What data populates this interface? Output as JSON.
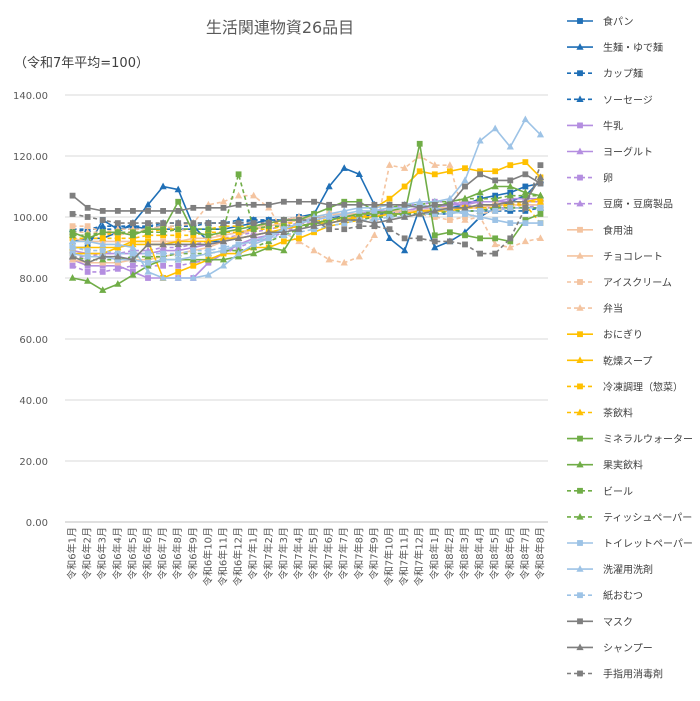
{
  "chart_data": {
    "type": "line",
    "title": "生活関連物資26品目",
    "note": "（令和7年平均=100）",
    "ylim": [
      0,
      140
    ],
    "yticks": [
      "0.00",
      "20.00",
      "40.00",
      "60.00",
      "80.00",
      "100.00",
      "120.00",
      "140.00"
    ],
    "grid": true,
    "legend_position": "right",
    "categories": [
      "令和6年1月",
      "令和6年2月",
      "令和6年3月",
      "令和6年4月",
      "令和6年5月",
      "令和6年6月",
      "令和6年7月",
      "令和6年8月",
      "令和6年9月",
      "令和6年10月",
      "令和6年11月",
      "令和6年12月",
      "令和7年1月",
      "令和7年2月",
      "令和7年3月",
      "令和7年4月",
      "令和7年5月",
      "令和7年6月",
      "令和7年7月",
      "令和7年8月",
      "令和7年9月",
      "令和7年10月",
      "令和7年11月",
      "令和7年12月",
      "令和8年1月",
      "令和8年2月",
      "令和8年3月",
      "令和8年4月",
      "令和8年5月",
      "令和8年6月",
      "令和8年7月",
      "令和8年8月"
    ],
    "series": [
      {
        "name": "食パン",
        "color": "#1f6fb6",
        "dash": "solid",
        "marker": "square",
        "values": [
          90,
          90,
          99,
          96,
          97,
          96,
          96,
          96,
          96,
          96,
          96,
          97,
          98,
          99,
          99,
          99,
          100,
          100,
          100,
          100,
          101,
          101,
          102,
          102,
          102,
          103,
          104,
          106,
          107,
          108,
          110,
          111
        ]
      },
      {
        "name": "生麺・ゆで麺",
        "color": "#1f6fb6",
        "dash": "solid",
        "marker": "triangle",
        "values": [
          92,
          93,
          93,
          95,
          98,
          104,
          110,
          109,
          97,
          92,
          92,
          94,
          97,
          98,
          99,
          100,
          101,
          110,
          116,
          114,
          104,
          93,
          89,
          103,
          90,
          92,
          95,
          100,
          103,
          105,
          107,
          112
        ]
      },
      {
        "name": "カップ麺",
        "color": "#1f6fb6",
        "dash": "dash",
        "marker": "square",
        "values": [
          95,
          96,
          96,
          96,
          96,
          97,
          97,
          97,
          97,
          98,
          98,
          98,
          99,
          99,
          99,
          100,
          100,
          100,
          100,
          100,
          100,
          100,
          101,
          101,
          101,
          101,
          102,
          102,
          102,
          102,
          102,
          103
        ]
      },
      {
        "name": "ソーセージ",
        "color": "#1f6fb6",
        "dash": "dash",
        "marker": "triangle",
        "values": [
          96,
          96,
          97,
          97,
          97,
          97,
          98,
          98,
          98,
          98,
          98,
          99,
          99,
          99,
          99,
          100,
          100,
          100,
          100,
          100,
          101,
          101,
          101,
          101,
          101,
          102,
          102,
          102,
          103,
          103,
          103,
          103
        ]
      },
      {
        "name": "牛乳",
        "color": "#b48ee0",
        "dash": "solid",
        "marker": "square",
        "values": [
          86,
          84,
          84,
          84,
          82,
          80,
          80,
          80,
          80,
          85,
          88,
          91,
          93,
          94,
          96,
          98,
          99,
          100,
          101,
          101,
          102,
          102,
          102,
          103,
          103,
          104,
          105,
          105,
          105,
          105,
          105,
          105
        ]
      },
      {
        "name": "ヨーグルト",
        "color": "#b48ee0",
        "dash": "solid",
        "marker": "triangle",
        "values": [
          89,
          88,
          88,
          88,
          88,
          88,
          89,
          89,
          90,
          91,
          92,
          93,
          94,
          95,
          96,
          97,
          98,
          99,
          100,
          101,
          101,
          102,
          102,
          103,
          103,
          104,
          104,
          105,
          105,
          106,
          106,
          106
        ]
      },
      {
        "name": "卵",
        "color": "#b48ee0",
        "dash": "dash",
        "marker": "square",
        "values": [
          84,
          82,
          82,
          83,
          84,
          84,
          84,
          84,
          85,
          86,
          88,
          90,
          92,
          93,
          95,
          97,
          98,
          99,
          100,
          101,
          102,
          103,
          104,
          104,
          105,
          105,
          104,
          103,
          103,
          103,
          103,
          104
        ]
      },
      {
        "name": "豆腐・豆腐製品",
        "color": "#b48ee0",
        "dash": "dash",
        "marker": "triangle",
        "values": [
          87,
          87,
          88,
          88,
          89,
          89,
          90,
          90,
          91,
          92,
          93,
          94,
          95,
          96,
          97,
          98,
          98,
          99,
          100,
          100,
          101,
          101,
          102,
          102,
          102,
          103,
          103,
          103,
          104,
          104,
          104,
          104
        ]
      },
      {
        "name": "食用油",
        "color": "#f4c4a0",
        "dash": "solid",
        "marker": "square",
        "values": [
          93,
          92,
          92,
          92,
          92,
          92,
          92,
          92,
          93,
          93,
          94,
          95,
          96,
          97,
          98,
          99,
          100,
          100,
          101,
          101,
          101,
          102,
          102,
          102,
          103,
          103,
          103,
          103,
          104,
          104,
          104,
          104
        ]
      },
      {
        "name": "チョコレート",
        "color": "#f4c4a0",
        "dash": "solid",
        "marker": "triangle",
        "values": [
          86,
          85,
          85,
          85,
          86,
          86,
          87,
          88,
          89,
          90,
          92,
          94,
          96,
          98,
          99,
          100,
          100,
          101,
          101,
          101,
          101,
          102,
          102,
          102,
          103,
          103,
          103,
          103,
          104,
          104,
          104,
          104
        ]
      },
      {
        "name": "アイスクリーム",
        "color": "#f4c4a0",
        "dash": "dash",
        "marker": "square",
        "values": [
          97,
          97,
          95,
          94,
          95,
          96,
          97,
          96,
          95,
          94,
          94,
          95,
          96,
          97,
          98,
          99,
          100,
          101,
          100,
          99,
          100,
          101,
          102,
          101,
          100,
          99,
          100,
          101,
          102,
          103,
          104,
          104
        ]
      },
      {
        "name": "弁当",
        "color": "#f4c4a0",
        "dash": "dash",
        "marker": "triangle",
        "values": [
          95,
          95,
          95,
          96,
          96,
          96,
          97,
          97,
          98,
          104,
          105,
          107,
          107,
          103,
          95,
          92,
          89,
          86,
          85,
          87,
          94,
          117,
          116,
          120,
          117,
          117,
          99,
          100,
          91,
          90,
          92,
          93
        ]
      },
      {
        "name": "おにぎり",
        "color": "#ffc000",
        "dash": "solid",
        "marker": "square",
        "values": [
          88,
          88,
          88,
          90,
          92,
          92,
          80,
          82,
          84,
          86,
          88,
          88,
          90,
          90,
          92,
          93,
          95,
          97,
          98,
          99,
          103,
          106,
          110,
          115,
          114,
          115,
          116,
          115,
          115,
          117,
          118,
          113
        ]
      },
      {
        "name": "乾燥スープ",
        "color": "#ffc000",
        "dash": "solid",
        "marker": "triangle",
        "values": [
          90,
          90,
          90,
          90,
          91,
          91,
          91,
          92,
          92,
          92,
          93,
          93,
          94,
          95,
          96,
          97,
          98,
          98,
          99,
          100,
          100,
          101,
          101,
          102,
          102,
          102,
          103,
          104,
          104,
          105,
          105,
          106
        ]
      },
      {
        "name": "冷凍調理（惣菜）",
        "color": "#ffc000",
        "dash": "dash",
        "marker": "square",
        "values": [
          93,
          93,
          93,
          93,
          93,
          94,
          94,
          94,
          94,
          95,
          95,
          95,
          96,
          96,
          97,
          97,
          98,
          99,
          99,
          100,
          100,
          101,
          101,
          102,
          102,
          102,
          103,
          103,
          103,
          104,
          104,
          98
        ]
      },
      {
        "name": "茶飲料",
        "color": "#ffc000",
        "dash": "dash",
        "marker": "triangle",
        "values": [
          94,
          94,
          94,
          95,
          95,
          95,
          96,
          96,
          96,
          96,
          97,
          97,
          97,
          98,
          98,
          98,
          99,
          99,
          100,
          100,
          100,
          101,
          101,
          102,
          102,
          103,
          103,
          104,
          104,
          104,
          105,
          105
        ]
      },
      {
        "name": "ミネラルウォーター",
        "color": "#70ad47",
        "dash": "solid",
        "marker": "square",
        "values": [
          95,
          93,
          95,
          95,
          94,
          96,
          96,
          105,
          95,
          94,
          95,
          96,
          97,
          98,
          99,
          99,
          101,
          103,
          105,
          105,
          102,
          101,
          101,
          124,
          94,
          95,
          94,
          93,
          93,
          92,
          99,
          101
        ]
      },
      {
        "name": "果実飲料",
        "color": "#70ad47",
        "dash": "solid",
        "marker": "triangle",
        "values": [
          80,
          79,
          76,
          78,
          81,
          84,
          86,
          86,
          86,
          86,
          86,
          87,
          88,
          90,
          89,
          97,
          98,
          99,
          100,
          101,
          101,
          102,
          103,
          104,
          103,
          105,
          106,
          108,
          110,
          110,
          108,
          107
        ]
      },
      {
        "name": "ビール",
        "color": "#70ad47",
        "dash": "dash",
        "marker": "square",
        "values": [
          94,
          94,
          95,
          95,
          95,
          95,
          95,
          96,
          96,
          96,
          96,
          114,
          96,
          97,
          97,
          97,
          98,
          98,
          99,
          99,
          100,
          100,
          101,
          101,
          101,
          102,
          102,
          102,
          103,
          103,
          103,
          103
        ]
      },
      {
        "name": "ティッシュペーパー",
        "color": "#70ad47",
        "dash": "dash",
        "marker": "triangle",
        "values": [
          87,
          86,
          86,
          86,
          87,
          87,
          87,
          88,
          88,
          88,
          89,
          89,
          90,
          92,
          94,
          96,
          98,
          99,
          100,
          101,
          102,
          103,
          104,
          104,
          105,
          105,
          106,
          106,
          106,
          107,
          107,
          107
        ]
      },
      {
        "name": "トイレットペーパー",
        "color": "#9dc3e6",
        "dash": "solid",
        "marker": "square",
        "values": [
          88,
          87,
          87,
          86,
          86,
          85,
          86,
          86,
          87,
          88,
          89,
          91,
          92,
          94,
          96,
          98,
          99,
          100,
          101,
          102,
          102,
          103,
          103,
          104,
          103,
          102,
          101,
          100,
          99,
          98,
          98,
          98
        ]
      },
      {
        "name": "洗濯用洗剤",
        "color": "#9dc3e6",
        "dash": "solid",
        "marker": "triangle",
        "values": [
          92,
          92,
          91,
          91,
          90,
          82,
          80,
          80,
          80,
          81,
          84,
          88,
          91,
          93,
          96,
          98,
          100,
          101,
          102,
          103,
          103,
          104,
          104,
          105,
          105,
          106,
          112,
          125,
          129,
          123,
          132,
          127
        ]
      },
      {
        "name": "紙おむつ",
        "color": "#9dc3e6",
        "dash": "dash",
        "marker": "square",
        "values": [
          90,
          89,
          89,
          88,
          88,
          88,
          88,
          88,
          89,
          89,
          90,
          91,
          92,
          93,
          94,
          95,
          96,
          97,
          98,
          99,
          99,
          100,
          100,
          101,
          101,
          101,
          102,
          102,
          102,
          103,
          103,
          103
        ]
      },
      {
        "name": "マスク",
        "color": "#7f7f7f",
        "dash": "solid",
        "marker": "square",
        "values": [
          107,
          103,
          102,
          102,
          102,
          102,
          102,
          102,
          103,
          103,
          103,
          104,
          104,
          104,
          105,
          105,
          105,
          104,
          104,
          104,
          104,
          104,
          104,
          103,
          104,
          104,
          110,
          114,
          112,
          112,
          114,
          111
        ]
      },
      {
        "name": "シャンプー",
        "color": "#7f7f7f",
        "dash": "solid",
        "marker": "triangle",
        "values": [
          87,
          85,
          87,
          87,
          86,
          91,
          91,
          91,
          91,
          91,
          92,
          93,
          94,
          95,
          95,
          96,
          97,
          98,
          99,
          99,
          98,
          99,
          100,
          101,
          102,
          103,
          103,
          104,
          104,
          105,
          105,
          113
        ]
      },
      {
        "name": "手指用消毒剤",
        "color": "#7f7f7f",
        "dash": "dash",
        "marker": "square",
        "values": [
          101,
          100,
          99,
          98,
          98,
          98,
          98,
          98,
          98,
          98,
          98,
          98,
          98,
          98,
          99,
          99,
          99,
          96,
          96,
          97,
          97,
          96,
          93,
          93,
          92,
          92,
          91,
          88,
          88,
          93,
          103,
          117
        ]
      }
    ]
  }
}
